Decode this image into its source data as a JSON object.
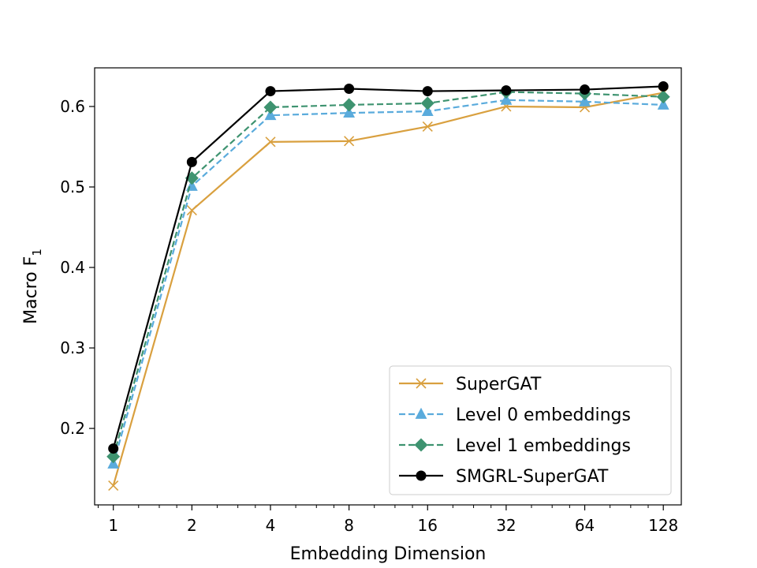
{
  "chart_data": {
    "type": "line",
    "title": "",
    "xlabel": "Embedding Dimension",
    "ylabel": "Macro F",
    "ylabel_subscript": "1",
    "x": [
      1,
      2,
      4,
      8,
      16,
      32,
      64,
      128
    ],
    "x_tick_labels": [
      "1",
      "2",
      "4",
      "8",
      "16",
      "32",
      "64",
      "128"
    ],
    "x_scale": "log2",
    "xlim": [
      0.848,
      150
    ],
    "ylim": [
      0.105,
      0.648
    ],
    "y_ticks": [
      0.2,
      0.3,
      0.4,
      0.5,
      0.6
    ],
    "y_tick_labels": [
      "0.2",
      "0.3",
      "0.4",
      "0.5",
      "0.6"
    ],
    "legend_position": "lower-right",
    "series": [
      {
        "name": "SuperGAT",
        "color": "#d9a03f",
        "dash": "solid",
        "marker": "x",
        "values": [
          0.129,
          0.471,
          0.556,
          0.557,
          0.575,
          0.6,
          0.599,
          0.617
        ]
      },
      {
        "name": "Level 0 embeddings",
        "color": "#5aabdc",
        "dash": "dashed",
        "marker": "triangle",
        "values": [
          0.156,
          0.501,
          0.589,
          0.592,
          0.594,
          0.608,
          0.606,
          0.602
        ]
      },
      {
        "name": "Level 1 embeddings",
        "color": "#3e9370",
        "dash": "dashed",
        "marker": "diamond",
        "values": [
          0.165,
          0.511,
          0.599,
          0.602,
          0.604,
          0.618,
          0.616,
          0.612
        ]
      },
      {
        "name": "SMGRL-SuperGAT",
        "color": "#000000",
        "dash": "solid",
        "marker": "circle",
        "values": [
          0.175,
          0.531,
          0.619,
          0.622,
          0.619,
          0.62,
          0.621,
          0.625
        ]
      }
    ]
  }
}
